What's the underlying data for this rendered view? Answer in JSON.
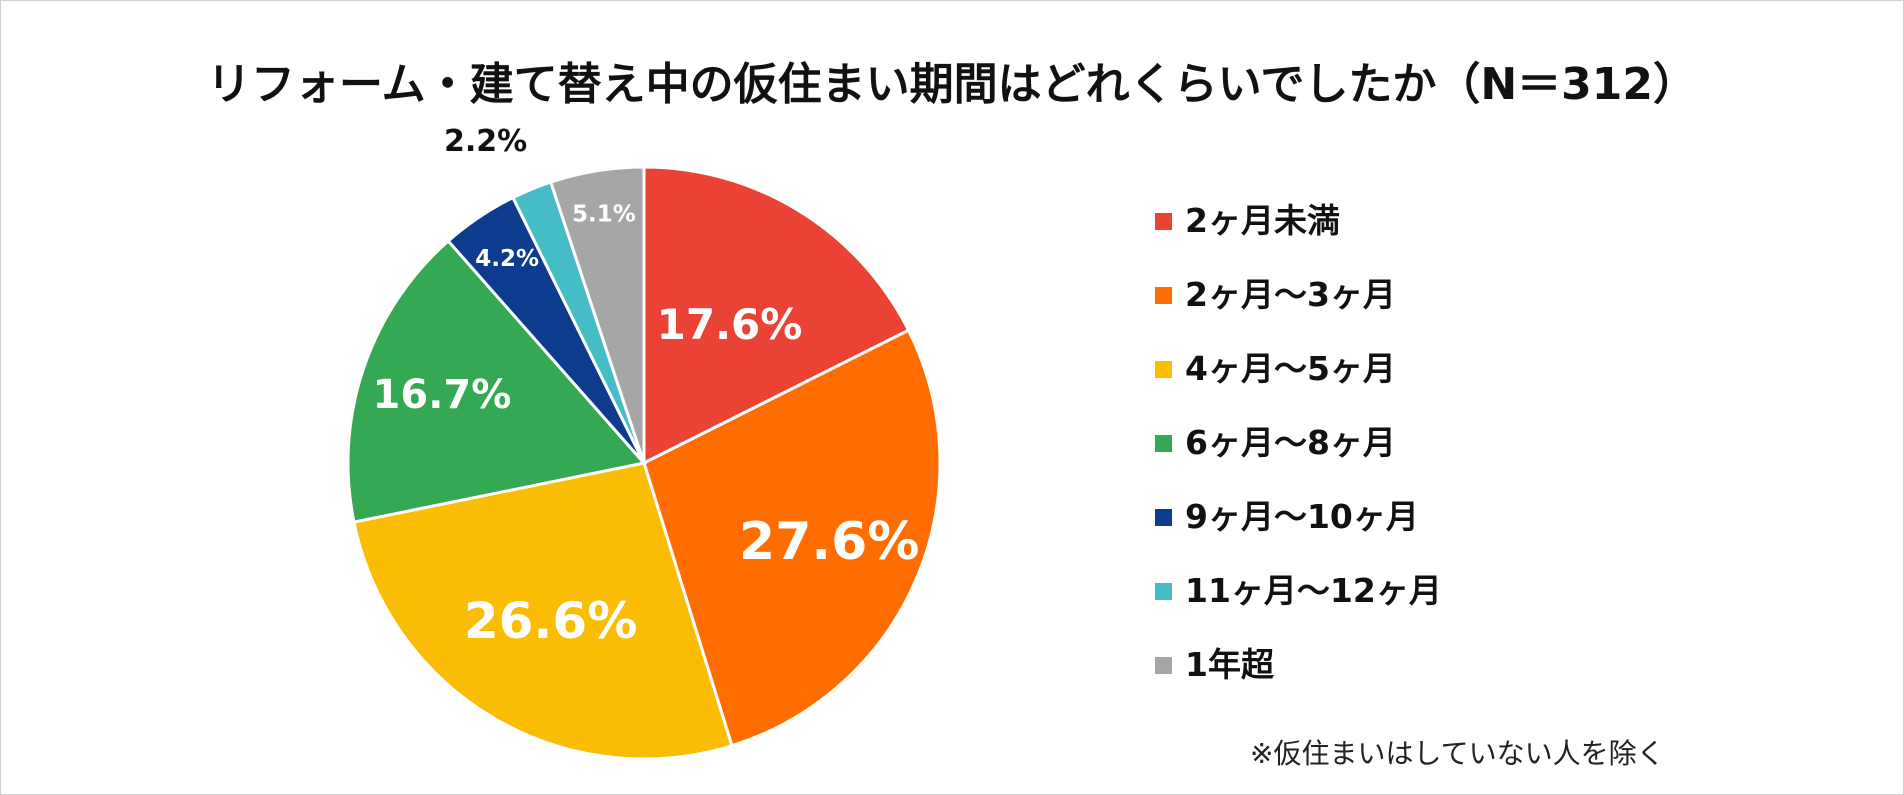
{
  "chart_data": {
    "type": "pie",
    "title": "リフォーム・建て替え中の仮住まい期間はどれくらいでしたか（N＝312）",
    "categories": [
      "2ヶ月未満",
      "2ヶ月～3ヶ月",
      "4ヶ月～5ヶ月",
      "6ヶ月～8ヶ月",
      "9ヶ月～10ヶ月",
      "11ヶ月～12ヶ月",
      "1年超"
    ],
    "values": [
      17.6,
      27.6,
      26.6,
      16.7,
      4.2,
      2.2,
      5.1
    ],
    "data_labels": [
      "17.6%",
      "27.6%",
      "26.6%",
      "16.7%",
      "4.2%",
      "2.2%",
      "5.1%"
    ],
    "colors": [
      "#EA4335",
      "#FF6D00",
      "#FBBC04",
      "#34A853",
      "#0D3B8E",
      "#46BDC6",
      "#A6A6A6"
    ],
    "legend_position": "right",
    "start_angle": "top",
    "direction": "clockwise"
  },
  "footnote": "※仮住まいはしていない人を除く"
}
